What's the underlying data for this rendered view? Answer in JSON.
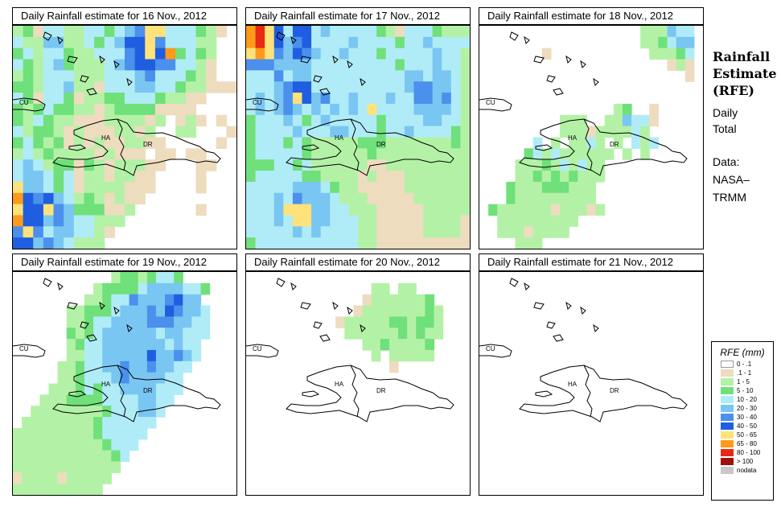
{
  "panels": [
    {
      "title": "Daily Rainfall estimate for  16 Nov., 2012"
    },
    {
      "title": "Daily Rainfall estimate for  17 Nov., 2012"
    },
    {
      "title": "Daily Rainfall estimate for  18 Nov., 2012"
    },
    {
      "title": "Daily Rainfall estimate for  19 Nov., 2012"
    },
    {
      "title": "Daily Rainfall estimate for  20 Nov., 2012"
    },
    {
      "title": "Daily Rainfall estimate for  21 Nov., 2012"
    }
  ],
  "map_labels": {
    "cu": "CU",
    "ha": "HA",
    "dr": "DR"
  },
  "side": {
    "title_line1": "Rainfall",
    "title_line2": "Estimate",
    "title_line3": "(RFE)",
    "desc_line1": "Daily",
    "desc_line2": "Total",
    "data_line1": "Data:",
    "data_line2": "NASA–",
    "data_line3": "TRMM"
  },
  "legend": {
    "title": "RFE (mm)",
    "items": [
      {
        "label": "0 - .1",
        "color": "#ffffff"
      },
      {
        "label": ".1 - 1",
        "color": "#eedcbf"
      },
      {
        "label": "1 - 5",
        "color": "#b3f2a6"
      },
      {
        "label": "5 - 10",
        "color": "#6fe07a"
      },
      {
        "label": "10 - 20",
        "color": "#b0ecf7"
      },
      {
        "label": "20 - 30",
        "color": "#7ac6f2"
      },
      {
        "label": "30 - 40",
        "color": "#4a90ec"
      },
      {
        "label": "40 - 50",
        "color": "#1f5ee0"
      },
      {
        "label": "50 - 65",
        "color": "#ffe27a"
      },
      {
        "label": "65 - 80",
        "color": "#ff9a1a"
      },
      {
        "label": "80 - 100",
        "color": "#e82a14"
      },
      {
        "label": "> 100",
        "color": "#a01010"
      },
      {
        "label": "nodata",
        "color": "#c8c8c8"
      }
    ]
  },
  "chart_data": {
    "type": "heatmap",
    "units": "mm",
    "dates": [
      "16 Nov., 2012",
      "17 Nov., 2012",
      "18 Nov., 2012",
      "19 Nov., 2012",
      "20 Nov., 2012",
      "21 Nov., 2012"
    ],
    "class_codes": {
      "0": "0 - .1",
      "1": ".1 - 1",
      "2": "1 - 5",
      "3": "5 - 10",
      "4": "10 - 20",
      "5": "20 - 30",
      "6": "30 - 40",
      "7": "40 - 50",
      "8": "50 - 65",
      "9": "65 - 80",
      "a": "80 - 100",
      "b": "> 100",
      "c": "nodata"
    },
    "grids": [
      [
        "2314422443456884443210",
        "4225522434577864442200",
        "3424432244467879343200",
        "4324532224567766442100",
        "2324442224445644432100",
        "3324452214445544322111",
        "4314431223344432211000",
        "3234332212333311110000",
        "3243221112222120121010",
        "4233212111221200220001",
        "3432312121122110000010",
        "2423222212111011011000",
        "4542331321222110001100",
        "4554341221221100001000",
        "8554341222211100001000",
        "9767542321211000000000",
        "8778653331120000001000",
        "9775654422200000000000",
        "6864554421000000000000",
        "7756542220000000000000"
      ],
      [
        "9a8747745444443214443222",
        "9a8756744445444434454444",
        "8986576544544434444454422",
        "6665555444444444344454422",
        "4446455444444444455455422",
        "4445677444444444456655422",
        "4545687564454445446656422",
        "4545654545454844445555422",
        "3444543454444434444554422",
        "3444454445544434454444322",
        "3444343222223332222222322",
        "3444443222222322222222222",
        "3334434222222112222222222",
        "3444443322221211122222222",
        "4444455543221111122222222",
        "4445465554222111112222222",
        "4445888554422211111222221",
        "4445488554442211111222211",
        "4444454544442211111222211",
        "3444444444442211111111111"
      ],
      [
        "0000000000000000002225440",
        "0000000000000000002234550",
        "0000000100000000000222340",
        "0000000000000000000001210",
        "0000000000000000000000010",
        "0000000000000000000000000",
        "0000000000000000000000000",
        "0000000000000002300100000",
        "0000000002220022544100000",
        "0000000002221222242000000",
        "0000004020224202042400000",
        "0000034242222220202000000",
        "0000222324242200000000000",
        "0000223232322200000000000",
        "0003222333222000000000000",
        "0003222222222000000000000",
        "0322222212221200000000000",
        "0022222222200000000000000",
        "0022212222000000000000000",
        "0000222000000000000000000"
      ],
      [
        "0000000000023323443000000",
        "0000000002333345555443000",
        "0000000022344655567550000",
        "0000002233345556576554000",
        "0000002234455556665544000",
        "0000003234555555455444000",
        "0000002344555555545440000",
        "0000002244555557556540000",
        "0000022344556556554400000",
        "0000022344456555544000000",
        "0000222343445555444000000",
        "0002223333444455440000000",
        "0022222222344455400000000",
        "0222222223444444000000000",
        "2222222223444440000000000",
        "2222222222344400000000000",
        "2222222222234000000000000",
        "2222222222220000000000000",
        "1222212222200000000000000",
        "2222222222000000000000000"
      ],
      [
        "0000000000000000000000000",
        "0000000000000022022000000",
        "0000000000000122222230000",
        "0000000000001222222232000",
        "0000000000122222332332000",
        "0000000000022222232322000",
        "0000000000000223222230000",
        "0000000000000020222220000",
        "0000000000000000100000000",
        "0000000000000000000000000",
        "0000000000000000000000000",
        "0000000000000000000000000",
        "0000000000000000000000000",
        "0000000000000000000000000",
        "0000000000000000000000000",
        "0000000000000000000000000",
        "0000000000000000000000000",
        "0000000000000000000000000",
        "0000000000000000000000000",
        "0000000000000000000000000"
      ],
      [
        "0000000000000000000000000",
        "0000000000000000000000000",
        "0000000000000000000000000",
        "0000000000000000000000000",
        "0000000000000000000000000",
        "0000000000000000000000000",
        "0000000000000000000000000",
        "0000000000000000000000000",
        "0000000000000000000000000",
        "0000000000000000000000000",
        "0000000000000000000000000",
        "0000000000000000000000000",
        "0000000000000000000000000",
        "0000000000000000000000000",
        "0000000000000000000000000",
        "0000000000000000000000000",
        "0000000000000000000000000",
        "0000000000000000000000000",
        "0000000000000000000000000",
        "0000000000000000000000000"
      ]
    ]
  }
}
